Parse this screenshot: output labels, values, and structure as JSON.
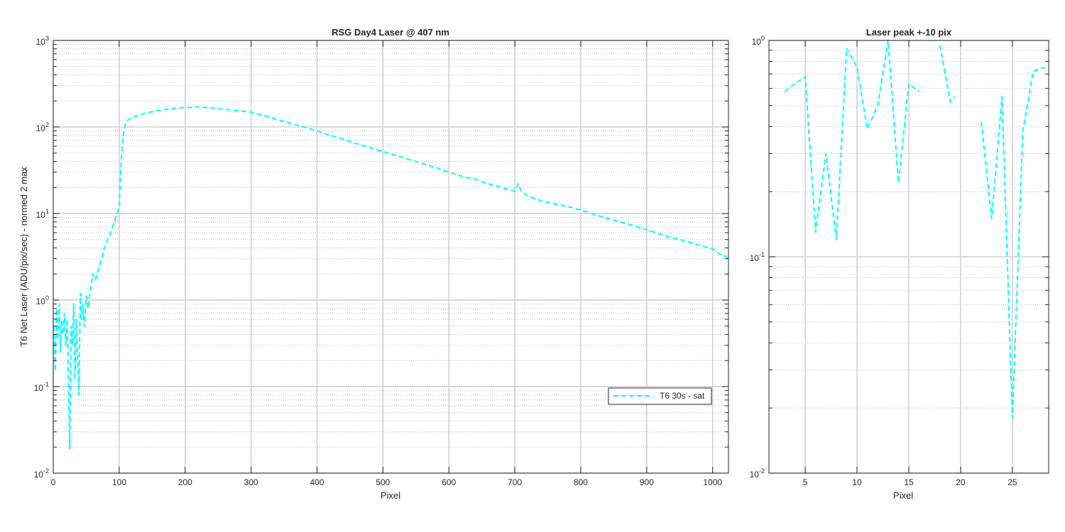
{
  "colors": {
    "series": "#00ffff",
    "axes": "#262626",
    "grid": "#cfcfcf"
  },
  "chart_data": [
    {
      "type": "line",
      "title": "RSG  Day4 Laser @ 407 nm",
      "xlabel": "Pixel",
      "ylabel": "T6 Net Laser (ADU/pix/sec) - normed 2 max",
      "xlim": [
        0,
        1024
      ],
      "ylim": [
        0.01,
        1000
      ],
      "yscale": "log",
      "grid": true,
      "minor_grid": true,
      "legend_position": "lower-right",
      "x_ticks": [
        0,
        100,
        200,
        300,
        400,
        500,
        600,
        700,
        800,
        900,
        1000
      ],
      "x_tick_labels": [
        "0",
        "100",
        "200",
        "300",
        "400",
        "500",
        "600",
        "700",
        "800",
        "900",
        "1000"
      ],
      "y_ticks": [
        0.01,
        0.1,
        1,
        10,
        100,
        1000
      ],
      "y_tick_labels": [
        {
          "base": "10",
          "exp": "-2"
        },
        {
          "base": "10",
          "exp": "-1"
        },
        {
          "base": "10",
          "exp": "0"
        },
        {
          "base": "10",
          "exp": "1"
        },
        {
          "base": "10",
          "exp": "2"
        },
        {
          "base": "10",
          "exp": "3"
        }
      ],
      "series": [
        {
          "name": "T6 30s - sat",
          "style": "dashed",
          "x": [
            1,
            3,
            5,
            7,
            9,
            11,
            13,
            15,
            17,
            19,
            21,
            23,
            25,
            27,
            29,
            31,
            33,
            35,
            37,
            39,
            41,
            43,
            45,
            47,
            50,
            53,
            56,
            60,
            64,
            68,
            72,
            76,
            80,
            85,
            90,
            95,
            100,
            103,
            106,
            110,
            120,
            140,
            160,
            180,
            200,
            220,
            240,
            260,
            280,
            300,
            320,
            340,
            360,
            380,
            400,
            420,
            440,
            460,
            480,
            500,
            520,
            540,
            560,
            580,
            600,
            620,
            640,
            660,
            680,
            700,
            705,
            710,
            720,
            740,
            760,
            780,
            800,
            820,
            840,
            860,
            880,
            900,
            920,
            940,
            960,
            980,
            1000,
            1010,
            1020,
            1024
          ],
          "y": [
            0.5,
            0.15,
            0.8,
            0.35,
            0.9,
            0.25,
            0.6,
            0.4,
            0.7,
            0.3,
            0.6,
            0.12,
            0.019,
            0.5,
            0.3,
            0.9,
            0.12,
            0.6,
            0.2,
            0.08,
            1.2,
            0.6,
            0.9,
            0.5,
            1.1,
            0.8,
            1.3,
            2.0,
            1.7,
            2.2,
            2.8,
            3.6,
            4.5,
            5.5,
            7.0,
            9.0,
            12,
            40,
            80,
            115,
            130,
            145,
            155,
            163,
            168,
            170,
            166,
            160,
            155,
            148,
            135,
            122,
            110,
            100,
            90,
            80,
            72,
            64,
            58,
            52,
            47,
            42,
            38,
            34,
            30,
            27,
            25,
            22,
            20,
            18,
            22,
            18,
            16,
            14,
            13,
            12,
            11,
            9.8,
            8.8,
            8.0,
            7.2,
            6.5,
            5.8,
            5.2,
            4.8,
            4.3,
            3.9,
            3.4,
            3.2,
            3.0
          ]
        }
      ]
    },
    {
      "type": "line",
      "title": "Laser peak +-10 pix",
      "xlabel": "Pixel",
      "ylabel": "",
      "xlim": [
        1.5,
        28.5
      ],
      "ylim": [
        0.01,
        1
      ],
      "yscale": "log",
      "grid": true,
      "minor_grid": true,
      "x_ticks": [
        5,
        10,
        15,
        20,
        25
      ],
      "x_tick_labels": [
        "5",
        "10",
        "15",
        "20",
        "25"
      ],
      "y_ticks": [
        0.01,
        0.1,
        1
      ],
      "y_tick_labels": [
        {
          "base": "10",
          "exp": "-2"
        },
        {
          "base": "10",
          "exp": "-1"
        },
        {
          "base": "10",
          "exp": "0"
        }
      ],
      "series": [
        {
          "name": "T6 30s - sat",
          "style": "dashed",
          "segments": [
            {
              "x": [
                3,
                4,
                5,
                6,
                7,
                8,
                9,
                10,
                11,
                12,
                13,
                14,
                15,
                16
              ],
              "y": [
                0.58,
                0.63,
                0.68,
                0.13,
                0.3,
                0.12,
                0.92,
                0.75,
                0.39,
                0.5,
                1.0,
                0.22,
                0.63,
                0.58
              ]
            },
            {
              "x": [
                18,
                19,
                19.5
              ],
              "y": [
                0.95,
                0.52,
                0.55
              ]
            },
            {
              "x": [
                22,
                23,
                24,
                25,
                26,
                27,
                28,
                28.5
              ],
              "y": [
                0.42,
                0.15,
                0.55,
                0.018,
                0.38,
                0.72,
                0.75,
                0.73
              ]
            }
          ]
        }
      ]
    }
  ]
}
